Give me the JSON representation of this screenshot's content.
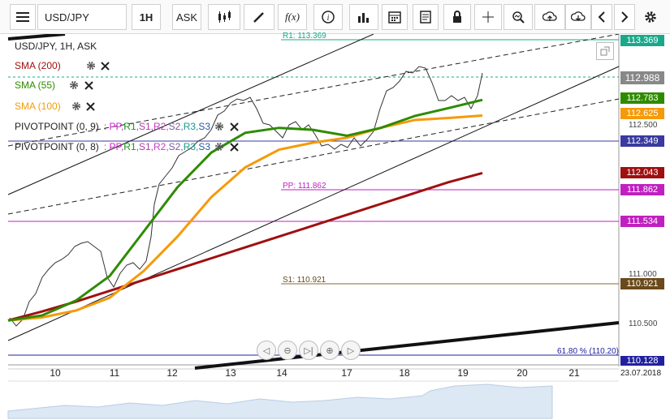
{
  "toolbar": {
    "symbol": "USD/JPY",
    "timeframe": "1H",
    "price_side": "ASK",
    "icons": [
      "menu-icon",
      "candles-icon",
      "draw-icon",
      "fx-icon",
      "info-icon",
      "bar-chart-icon",
      "calendar-icon",
      "document-icon",
      "lock-icon",
      "crosshair-icon",
      "zoom-icon",
      "upload-icon",
      "download-icon",
      "prev-icon",
      "next-icon",
      "gear-icon"
    ]
  },
  "legend": {
    "title": "USD/JPY, 1H, ASK",
    "items": [
      {
        "label": "SMA (200)",
        "color": "#a01010"
      },
      {
        "label": "SMA (55)",
        "color": "#2e8b00"
      },
      {
        "label": "SMA (100)",
        "color": "#f59a0a"
      }
    ],
    "pivot1": {
      "label": "PIVOTPOINT (0, 9)",
      "levels": [
        {
          "t": ": PP,",
          "c": "#cc22cc"
        },
        {
          "t": " R1,",
          "c": "#1a9a1a"
        },
        {
          "t": " S1,",
          "c": "#b03aa8"
        },
        {
          "t": " R2,",
          "c": "#c040c0"
        },
        {
          "t": " S2,",
          "c": "#7a5aa0"
        },
        {
          "t": " R3,",
          "c": "#1a9a8a"
        },
        {
          "t": " S3",
          "c": "#225aa8"
        }
      ]
    },
    "pivot2": {
      "label": "PIVOTPOINT (0, 8)",
      "levels": [
        {
          "t": ": PP,",
          "c": "#cc22cc"
        },
        {
          "t": " R1,",
          "c": "#1a9a1a"
        },
        {
          "t": " S1,",
          "c": "#b03aa8"
        },
        {
          "t": " R2,",
          "c": "#c040c0"
        },
        {
          "t": " S2,",
          "c": "#7a5aa0"
        },
        {
          "t": " R3,",
          "c": "#1a9a8a"
        },
        {
          "t": " S3",
          "c": "#225aa8"
        }
      ]
    }
  },
  "price_labels": [
    {
      "value": "113.369",
      "bg": "#1aa88a"
    },
    {
      "value": "112.988",
      "bg": "#888888"
    },
    {
      "value": "112.783",
      "bg": "#2e8b00"
    },
    {
      "value": "112.625",
      "bg": "#f59a0a"
    },
    {
      "value": "112.349",
      "bg": "#3a3aa0"
    },
    {
      "value": "112.043",
      "bg": "#a01010"
    },
    {
      "value": "111.862",
      "bg": "#c020c0"
    },
    {
      "value": "111.534",
      "bg": "#c020c0"
    },
    {
      "value": "110.921",
      "bg": "#6a4a1a"
    },
    {
      "value": "110.128",
      "bg": "#2020a0"
    }
  ],
  "axis_ticks": [
    "112.500",
    "111.000",
    "110.500"
  ],
  "hline_labels": {
    "r1": "R1: 113.369",
    "pp": "PP: 111.862",
    "s1": "S1: 110.921",
    "fib": "61.80 % (110.20)"
  },
  "x_labels": [
    "10",
    "11",
    "12",
    "13",
    "14",
    "17",
    "18",
    "19",
    "20",
    "21",
    "23.07.2018"
  ],
  "chart_data": {
    "type": "line",
    "price_range": [
      110.1,
      113.45
    ],
    "current_price": 112.988,
    "sma200": [
      110.55,
      110.64,
      110.74,
      110.85,
      110.96,
      111.07,
      111.18,
      111.29,
      111.4,
      111.51,
      111.62,
      111.73,
      111.84,
      111.95,
      112.043
    ],
    "sma55": [
      110.55,
      110.6,
      110.75,
      111.0,
      111.45,
      111.9,
      112.25,
      112.45,
      112.5,
      112.48,
      112.42,
      112.5,
      112.62,
      112.7,
      112.783
    ],
    "sma100": [
      110.55,
      110.58,
      110.65,
      110.78,
      111.05,
      111.4,
      111.8,
      112.1,
      112.28,
      112.35,
      112.4,
      112.5,
      112.58,
      112.6,
      112.625
    ]
  }
}
